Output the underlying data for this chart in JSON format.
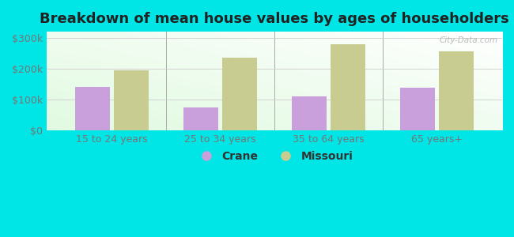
{
  "title": "Breakdown of mean house values by ages of householders",
  "categories": [
    "15 to 24 years",
    "25 to 34 years",
    "35 to 64 years",
    "65 years+"
  ],
  "crane_values": [
    140000,
    75000,
    110000,
    138000
  ],
  "missouri_values": [
    195000,
    235000,
    280000,
    255000
  ],
  "crane_color": "#c9a0dc",
  "missouri_color": "#c8cc90",
  "background_color": "#00e5e5",
  "ylim": [
    0,
    320000
  ],
  "yticks": [
    0,
    100000,
    200000,
    300000
  ],
  "ytick_labels": [
    "$0",
    "$100k",
    "$200k",
    "$300k"
  ],
  "bar_width": 0.32,
  "legend_labels": [
    "Crane",
    "Missouri"
  ],
  "title_fontsize": 13,
  "tick_fontsize": 9,
  "legend_fontsize": 10
}
